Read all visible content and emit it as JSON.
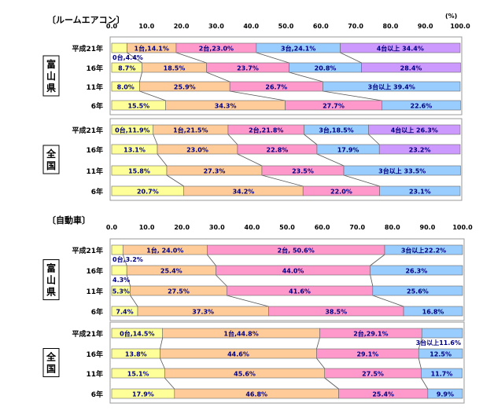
{
  "unit_label": "(%)",
  "axis_ticks": [
    "0.0",
    "10.0",
    "20.0",
    "30.0",
    "40.0",
    "50.0",
    "60.0",
    "70.0",
    "80.0",
    "90.0",
    "100.0"
  ],
  "chart_data": [
    {
      "type": "bar",
      "title": "〔ルームエアコン〕",
      "xlim": [
        0,
        100
      ],
      "groups": [
        {
          "name": "富山県",
          "rows": [
            {
              "label": "平成21年",
              "segments": [
                {
                  "cat": "0台",
                  "value": 4.4,
                  "text": "0台,4.4%"
                },
                {
                  "cat": "1台",
                  "value": 14.1,
                  "text": "1台,14.1%"
                },
                {
                  "cat": "2台",
                  "value": 23.0,
                  "text": "2台,23.0%"
                },
                {
                  "cat": "3台",
                  "value": 24.1,
                  "text": "3台,24.1%"
                },
                {
                  "cat": "4台以上",
                  "value": 34.4,
                  "text": "4台以上 34.4%"
                }
              ]
            },
            {
              "label": "16年",
              "segments": [
                {
                  "cat": "0台",
                  "value": 8.7,
                  "text": "8.7%"
                },
                {
                  "cat": "1台",
                  "value": 18.5,
                  "text": "18.5%"
                },
                {
                  "cat": "2台",
                  "value": 23.7,
                  "text": "23.7%"
                },
                {
                  "cat": "3台",
                  "value": 20.8,
                  "text": "20.8%"
                },
                {
                  "cat": "4台以上",
                  "value": 28.4,
                  "text": "28.4%"
                }
              ]
            },
            {
              "label": "11年",
              "segments": [
                {
                  "cat": "0台",
                  "value": 8.0,
                  "text": "8.0%"
                },
                {
                  "cat": "1台",
                  "value": 25.9,
                  "text": "25.9%"
                },
                {
                  "cat": "2台",
                  "value": 26.7,
                  "text": "26.7%"
                },
                {
                  "cat": "3台以上",
                  "value": 39.4,
                  "text": "3台以上 39.4%"
                }
              ]
            },
            {
              "label": "6年",
              "segments": [
                {
                  "cat": "0台",
                  "value": 15.5,
                  "text": "15.5%"
                },
                {
                  "cat": "1台",
                  "value": 34.3,
                  "text": "34.3%"
                },
                {
                  "cat": "2台",
                  "value": 27.7,
                  "text": "27.7%"
                },
                {
                  "cat": "3台以上",
                  "value": 22.6,
                  "text": "22.6%"
                }
              ]
            }
          ]
        },
        {
          "name": "全国",
          "rows": [
            {
              "label": "平成21年",
              "segments": [
                {
                  "cat": "0台",
                  "value": 11.9,
                  "text": "0台,11.9%"
                },
                {
                  "cat": "1台",
                  "value": 21.5,
                  "text": "1台,21.5%"
                },
                {
                  "cat": "2台",
                  "value": 21.8,
                  "text": "2台,21.8%"
                },
                {
                  "cat": "3台",
                  "value": 18.5,
                  "text": "3台,18.5%"
                },
                {
                  "cat": "4台以上",
                  "value": 26.3,
                  "text": "4台以上 26.3%"
                }
              ]
            },
            {
              "label": "16年",
              "segments": [
                {
                  "cat": "0台",
                  "value": 13.1,
                  "text": "13.1%"
                },
                {
                  "cat": "1台",
                  "value": 23.0,
                  "text": "23.0%"
                },
                {
                  "cat": "2台",
                  "value": 22.8,
                  "text": "22.8%"
                },
                {
                  "cat": "3台",
                  "value": 17.9,
                  "text": "17.9%"
                },
                {
                  "cat": "4台以上",
                  "value": 23.2,
                  "text": "23.2%"
                }
              ]
            },
            {
              "label": "11年",
              "segments": [
                {
                  "cat": "0台",
                  "value": 15.8,
                  "text": "15.8%"
                },
                {
                  "cat": "1台",
                  "value": 27.3,
                  "text": "27.3%"
                },
                {
                  "cat": "2台",
                  "value": 23.5,
                  "text": "23.5%"
                },
                {
                  "cat": "3台以上",
                  "value": 33.5,
                  "text": "3台以上 33.5%"
                }
              ]
            },
            {
              "label": "6年",
              "segments": [
                {
                  "cat": "0台",
                  "value": 20.7,
                  "text": "20.7%"
                },
                {
                  "cat": "1台",
                  "value": 34.2,
                  "text": "34.2%"
                },
                {
                  "cat": "2台",
                  "value": 22.0,
                  "text": "22.0%"
                },
                {
                  "cat": "3台以上",
                  "value": 23.1,
                  "text": "23.1%"
                }
              ]
            }
          ]
        }
      ]
    },
    {
      "type": "bar",
      "title": "〔自動車〕",
      "xlim": [
        0,
        100
      ],
      "groups": [
        {
          "name": "富山県",
          "rows": [
            {
              "label": "平成21年",
              "segments": [
                {
                  "cat": "0台",
                  "value": 3.2,
                  "text": "0台,3.2%"
                },
                {
                  "cat": "1台",
                  "value": 24.0,
                  "text": "1台, 24.0%"
                },
                {
                  "cat": "2台",
                  "value": 50.6,
                  "text": "2台, 50.6%"
                },
                {
                  "cat": "3台以上",
                  "value": 22.2,
                  "text": "3台以上22.2%"
                }
              ]
            },
            {
              "label": "16年",
              "segments": [
                {
                  "cat": "0台",
                  "value": 4.3,
                  "text": "4.3%"
                },
                {
                  "cat": "1台",
                  "value": 25.4,
                  "text": "25.4%"
                },
                {
                  "cat": "2台",
                  "value": 44.0,
                  "text": "44.0%"
                },
                {
                  "cat": "3台以上",
                  "value": 26.3,
                  "text": "26.3%"
                }
              ]
            },
            {
              "label": "11年",
              "segments": [
                {
                  "cat": "0台",
                  "value": 5.3,
                  "text": "5.3%"
                },
                {
                  "cat": "1台",
                  "value": 27.5,
                  "text": "27.5%"
                },
                {
                  "cat": "2台",
                  "value": 41.6,
                  "text": "41.6%"
                },
                {
                  "cat": "3台以上",
                  "value": 25.6,
                  "text": "25.6%"
                }
              ]
            },
            {
              "label": "6年",
              "segments": [
                {
                  "cat": "0台",
                  "value": 7.4,
                  "text": "7.4%"
                },
                {
                  "cat": "1台",
                  "value": 37.3,
                  "text": "37.3%"
                },
                {
                  "cat": "2台",
                  "value": 38.5,
                  "text": "38.5%"
                },
                {
                  "cat": "3台以上",
                  "value": 16.8,
                  "text": "16.8%"
                }
              ]
            }
          ]
        },
        {
          "name": "全国",
          "rows": [
            {
              "label": "平成21年",
              "segments": [
                {
                  "cat": "0台",
                  "value": 14.5,
                  "text": "0台,14.5%"
                },
                {
                  "cat": "1台",
                  "value": 44.8,
                  "text": "1台,44.8%"
                },
                {
                  "cat": "2台",
                  "value": 29.1,
                  "text": "2台,29.1%"
                },
                {
                  "cat": "3台以上",
                  "value": 11.6,
                  "text": "3台以上11.6%"
                }
              ]
            },
            {
              "label": "16年",
              "segments": [
                {
                  "cat": "0台",
                  "value": 13.8,
                  "text": "13.8%"
                },
                {
                  "cat": "1台",
                  "value": 44.6,
                  "text": "44.6%"
                },
                {
                  "cat": "2台",
                  "value": 29.1,
                  "text": "29.1%"
                },
                {
                  "cat": "3台以上",
                  "value": 12.5,
                  "text": "12.5%"
                }
              ]
            },
            {
              "label": "11年",
              "segments": [
                {
                  "cat": "0台",
                  "value": 15.1,
                  "text": "15.1%"
                },
                {
                  "cat": "1台",
                  "value": 45.6,
                  "text": "45.6%"
                },
                {
                  "cat": "2台",
                  "value": 27.5,
                  "text": "27.5%"
                },
                {
                  "cat": "3台以上",
                  "value": 11.7,
                  "text": "11.7%"
                }
              ]
            },
            {
              "label": "6年",
              "segments": [
                {
                  "cat": "0台",
                  "value": 17.9,
                  "text": "17.9%"
                },
                {
                  "cat": "1台",
                  "value": 46.8,
                  "text": "46.8%"
                },
                {
                  "cat": "2台",
                  "value": 25.4,
                  "text": "25.4%"
                },
                {
                  "cat": "3台以上",
                  "value": 9.9,
                  "text": "9.9%"
                }
              ]
            }
          ]
        }
      ]
    }
  ],
  "colors": {
    "0台": "#ffff99",
    "1台": "#ffcc99",
    "2台": "#ff99cc",
    "3台": "#99ccff",
    "3台以上": "#99ccff",
    "4台以上": "#cc99ff",
    "text": "#000080",
    "axis": "#333333"
  }
}
